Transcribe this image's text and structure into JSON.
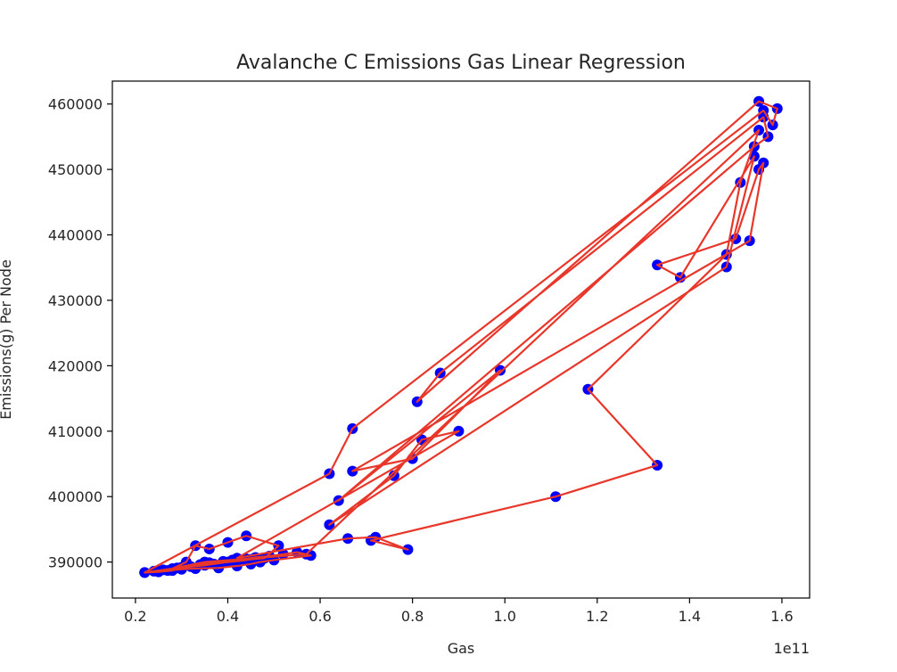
{
  "chart_data": {
    "type": "scatter",
    "title": "Avalanche C Emissions Gas Linear Regression",
    "xlabel": "Gas",
    "ylabel": "Emissions(g) Per Node",
    "x_offset_text": "1e11",
    "xlim": [
      0.15,
      1.66
    ],
    "ylim": [
      384500,
      463500
    ],
    "x_ticks": [
      0.2,
      0.4,
      0.6,
      0.8,
      1.0,
      1.2,
      1.4,
      1.6
    ],
    "x_tick_labels": [
      "0.2",
      "0.4",
      "0.6",
      "0.8",
      "1.0",
      "1.2",
      "1.4",
      "1.6"
    ],
    "y_ticks": [
      390000,
      400000,
      410000,
      420000,
      430000,
      440000,
      450000,
      460000
    ],
    "y_tick_labels": [
      "390000",
      "400000",
      "410000",
      "420000",
      "430000",
      "440000",
      "450000",
      "460000"
    ],
    "grid": false,
    "colors": {
      "points": "#0000ff",
      "line": "#e8372a",
      "axes": "#000000"
    },
    "x": [
      0.22,
      0.25,
      0.28,
      0.3,
      0.34,
      0.36,
      0.39,
      0.41,
      0.44,
      0.46,
      0.49,
      0.52,
      0.55,
      0.58,
      0.5,
      0.47,
      0.45,
      0.42,
      0.38,
      0.33,
      0.3,
      0.27,
      0.24,
      0.26,
      0.29,
      0.32,
      0.35,
      0.37,
      0.4,
      0.43,
      0.45,
      0.48,
      0.51,
      0.44,
      0.4,
      0.36,
      0.33,
      0.31,
      0.28,
      0.22,
      0.62,
      0.67,
      1.56,
      1.58,
      1.59,
      1.55,
      0.81,
      0.86,
      1.56,
      1.57,
      1.54,
      0.64,
      0.99,
      0.8,
      0.67,
      1.53,
      1.56,
      1.55,
      1.5,
      1.33,
      1.38,
      1.54,
      1.48,
      0.62,
      0.76,
      0.82,
      0.9,
      0.42,
      0.66,
      0.72,
      0.79,
      0.71,
      1.11,
      1.33,
      1.18,
      1.48,
      1.51,
      1.55,
      0.57,
      0.35,
      0.25
    ],
    "y": [
      388400,
      388500,
      388700,
      389200,
      389600,
      389900,
      390100,
      390300,
      390500,
      390700,
      390900,
      391200,
      391500,
      391000,
      390300,
      390000,
      389700,
      389400,
      389100,
      389000,
      388900,
      388700,
      388600,
      388800,
      389100,
      389300,
      389500,
      389700,
      390000,
      390200,
      390400,
      390600,
      392500,
      394000,
      393000,
      392000,
      392500,
      390000,
      389000,
      388400,
      403500,
      410400,
      459000,
      456800,
      459300,
      460400,
      414500,
      418900,
      458000,
      455000,
      453500,
      399400,
      419300,
      405800,
      403900,
      439100,
      451000,
      450000,
      439400,
      435400,
      433500,
      452000,
      435100,
      395700,
      403200,
      408700,
      410000,
      390600,
      393600,
      393800,
      391900,
      393300,
      400000,
      404800,
      416400,
      437000,
      448000,
      456000,
      391200,
      390000,
      388600
    ]
  }
}
